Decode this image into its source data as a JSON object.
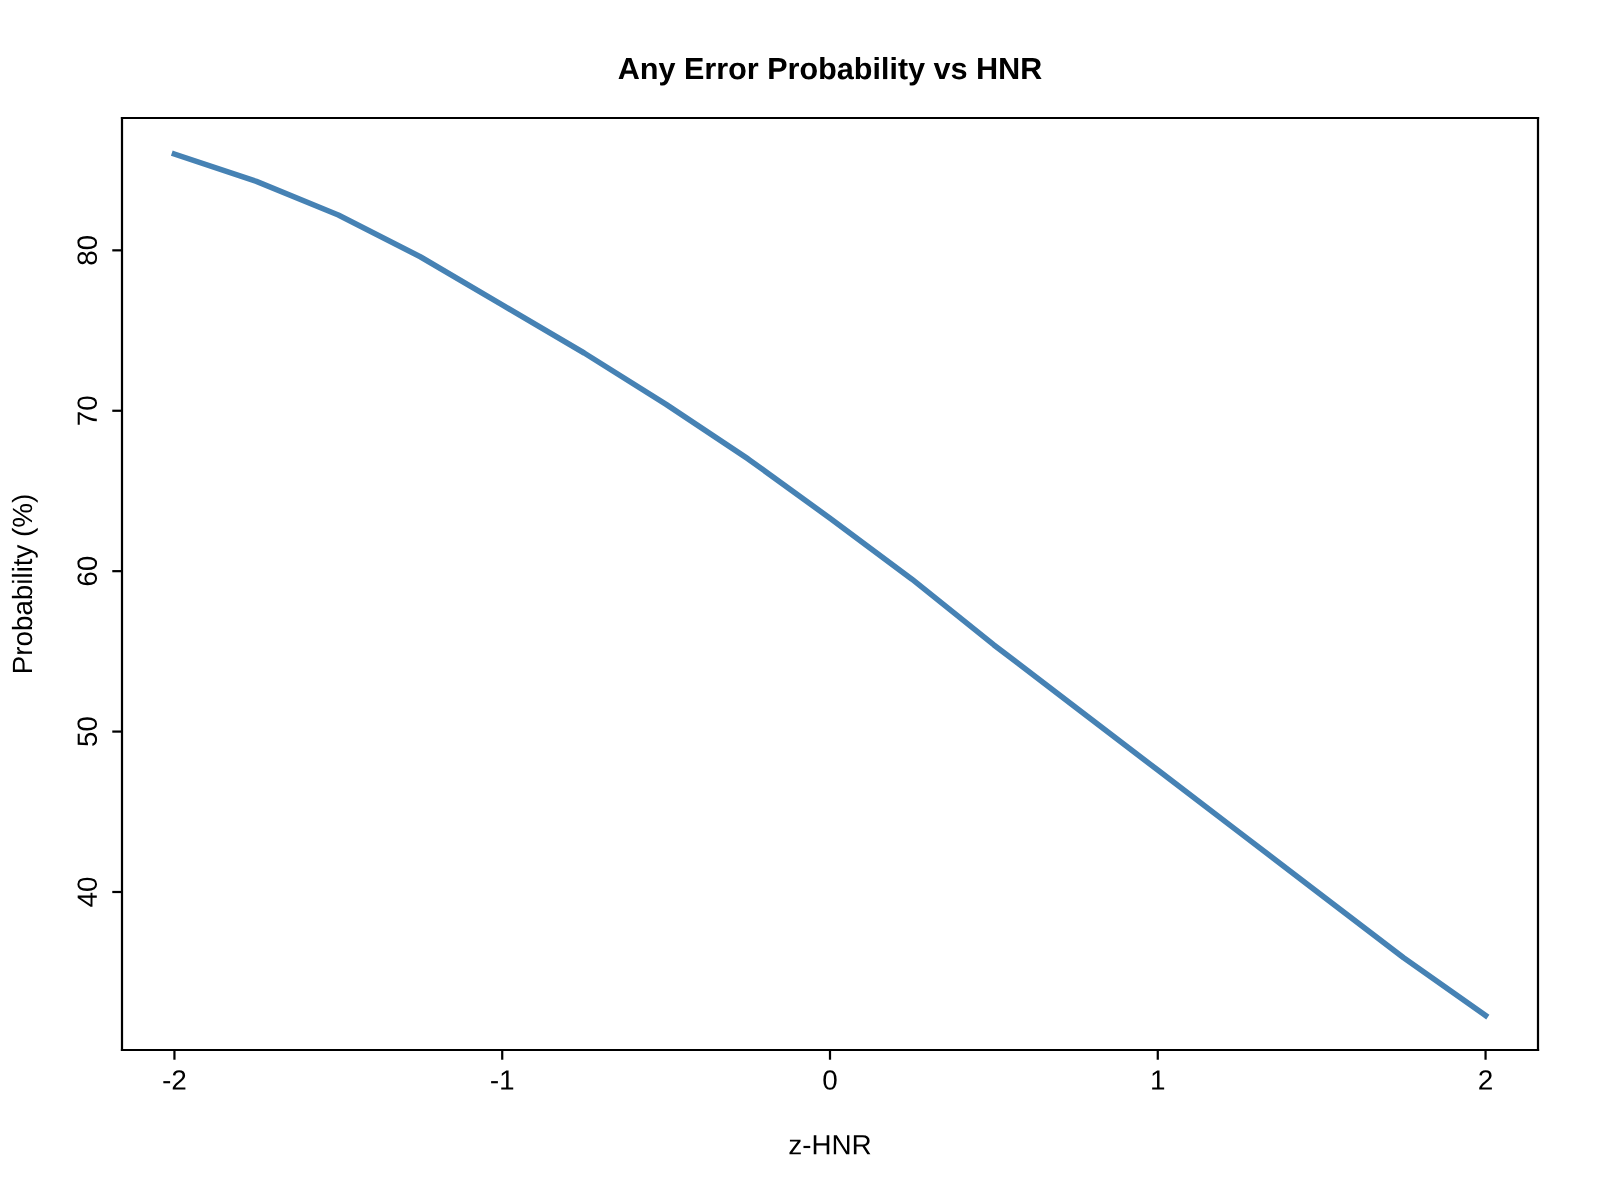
{
  "chart_data": {
    "type": "line",
    "title": "Any Error Probability vs HNR",
    "xlabel": "z-HNR",
    "ylabel": "Probability (%)",
    "x": [
      -2,
      -1.75,
      -1.5,
      -1.25,
      -1,
      -0.75,
      -0.5,
      -0.25,
      0,
      0.25,
      0.5,
      0.75,
      1,
      1.25,
      1.5,
      1.75,
      2
    ],
    "series": [
      {
        "color": "#4682b4",
        "values": [
          86.0,
          84.3,
          82.2,
          79.6,
          76.6,
          73.6,
          70.4,
          67.0,
          63.3,
          59.5,
          55.4,
          51.5,
          47.6,
          43.7,
          39.8,
          35.9,
          32.3
        ]
      }
    ],
    "xlim": [
      -2.16,
      2.16
    ],
    "ylim": [
      30.15,
      88.25
    ],
    "xticks": [
      -2,
      -1,
      0,
      1,
      2
    ],
    "yticks": [
      40,
      50,
      60,
      70,
      80
    ],
    "grid": false,
    "marker": "none",
    "line_style": "solid"
  }
}
